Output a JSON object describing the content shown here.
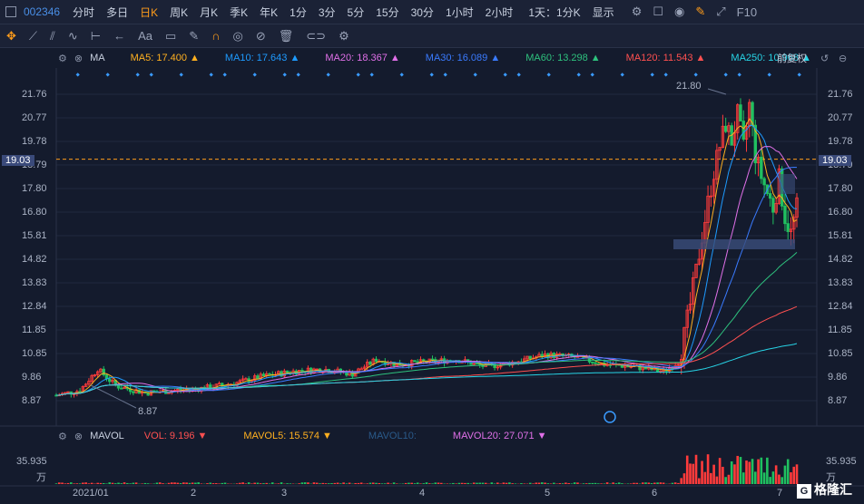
{
  "topbar": {
    "code": "002346",
    "timeframes": [
      "分时",
      "多日",
      "日K",
      "周K",
      "月K",
      "季K",
      "年K",
      "1分",
      "3分",
      "5分",
      "15分",
      "30分",
      "1小时",
      "2小时"
    ],
    "active": "日K",
    "range_label": "1天：1分K",
    "display_label": "显示",
    "f10_label": "F10"
  },
  "toolbar": {
    "icons": [
      "crosshair-icon",
      "line-icon",
      "channel-icon",
      "wave-icon",
      "measure-icon",
      "arrow-icon",
      "text-icon",
      "comment-icon",
      "pen-icon",
      "magnet-icon",
      "eye-icon",
      "eye-off-icon",
      "trash-icon",
      "link-icon",
      "gear-icon"
    ],
    "text_label": "Aa"
  },
  "ma_legend": {
    "title": "MA",
    "items": [
      {
        "label": "MA5: 17.400",
        "color": "#ffb020"
      },
      {
        "label": "MA10: 17.643",
        "color": "#1e9bff"
      },
      {
        "label": "MA20: 18.367",
        "color": "#e070e8"
      },
      {
        "label": "MA30: 16.089",
        "color": "#3a7bff"
      },
      {
        "label": "MA60: 13.298",
        "color": "#2ec27e"
      },
      {
        "label": "MA120: 11.543",
        "color": "#ff5050"
      },
      {
        "label": "MA250: 10.968",
        "color": "#27d4e6"
      }
    ],
    "adjust_label": "前复权"
  },
  "price_axis": [
    "21.76",
    "20.77",
    "19.78",
    "18.79",
    "17.80",
    "16.80",
    "15.81",
    "14.82",
    "13.83",
    "12.84",
    "11.85",
    "10.85",
    "9.86",
    "8.87"
  ],
  "current_price": "19.03",
  "annotations": {
    "high": "21.80",
    "low": "8.87"
  },
  "vol_legend": {
    "title": "MAVOL",
    "items": [
      {
        "label": "VOL: 9.196",
        "color": "#ff5050"
      },
      {
        "label": "MAVOL5: 15.574",
        "color": "#ffb020"
      },
      {
        "label": "MAVOL10:",
        "color": "#2a5a8a"
      },
      {
        "label": "MAVOL20: 27.071",
        "color": "#e070e8"
      }
    ]
  },
  "vol_axis": {
    "value": "35.935",
    "unit": "万"
  },
  "date_axis": [
    "2021/01",
    "2",
    "3",
    "4",
    "5",
    "6",
    "7"
  ],
  "watermark": "格隆汇",
  "chart_data": {
    "type": "candlestick",
    "ylim": [
      8.5,
      22.2
    ],
    "close_series": [
      [
        0,
        9.1
      ],
      [
        8,
        9.3
      ],
      [
        14,
        10.2
      ],
      [
        20,
        9.5
      ],
      [
        30,
        9.2
      ],
      [
        40,
        9.3
      ],
      [
        50,
        9.4
      ],
      [
        60,
        9.6
      ],
      [
        70,
        9.9
      ],
      [
        80,
        10.1
      ],
      [
        90,
        10.2
      ],
      [
        100,
        10.0
      ],
      [
        108,
        10.6
      ],
      [
        115,
        10.4
      ],
      [
        125,
        10.5
      ],
      [
        135,
        10.6
      ],
      [
        145,
        10.3
      ],
      [
        155,
        10.5
      ],
      [
        165,
        10.8
      ],
      [
        175,
        10.7
      ],
      [
        185,
        10.4
      ],
      [
        195,
        10.3
      ],
      [
        205,
        10.1
      ],
      [
        210,
        10.5
      ],
      [
        212,
        11.6
      ],
      [
        214,
        12.9
      ],
      [
        216,
        14.3
      ],
      [
        218,
        15.8
      ],
      [
        220,
        17.2
      ],
      [
        222,
        18.5
      ],
      [
        224,
        19.6
      ],
      [
        226,
        20.5
      ],
      [
        228,
        19.8
      ],
      [
        230,
        20.9
      ],
      [
        232,
        19.5
      ],
      [
        234,
        21.3
      ],
      [
        236,
        19.2
      ],
      [
        238,
        18.3
      ],
      [
        240,
        17.6
      ],
      [
        242,
        17.0
      ],
      [
        244,
        18.2
      ],
      [
        246,
        16.6
      ],
      [
        248,
        15.9
      ],
      [
        250,
        17.0
      ]
    ]
  }
}
